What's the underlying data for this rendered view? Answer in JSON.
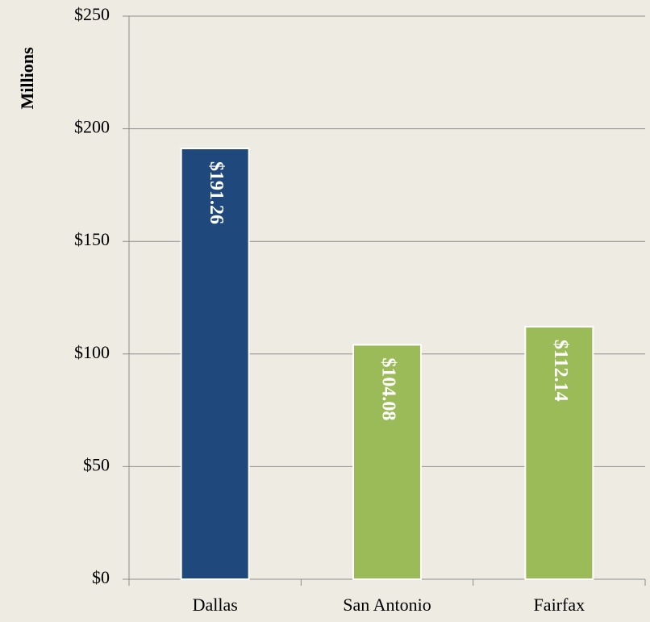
{
  "chart_data": {
    "type": "bar",
    "y_label": "Millions",
    "categories": [
      "Dallas",
      "San Antonio",
      "Fairfax"
    ],
    "values": [
      191.26,
      104.08,
      112.14
    ],
    "value_labels": [
      "$191.26",
      "$104.08",
      "$112.14"
    ],
    "colors": [
      "#1f497d",
      "#9bbb59",
      "#9bbb59"
    ],
    "ylim": [
      0,
      250
    ],
    "yticks": [
      {
        "value": 0,
        "label": "$0"
      },
      {
        "value": 50,
        "label": "$50"
      },
      {
        "value": 100,
        "label": "$100"
      },
      {
        "value": 150,
        "label": "$150"
      },
      {
        "value": 200,
        "label": "$200"
      },
      {
        "value": 250,
        "label": "$250"
      }
    ],
    "grid": true
  }
}
